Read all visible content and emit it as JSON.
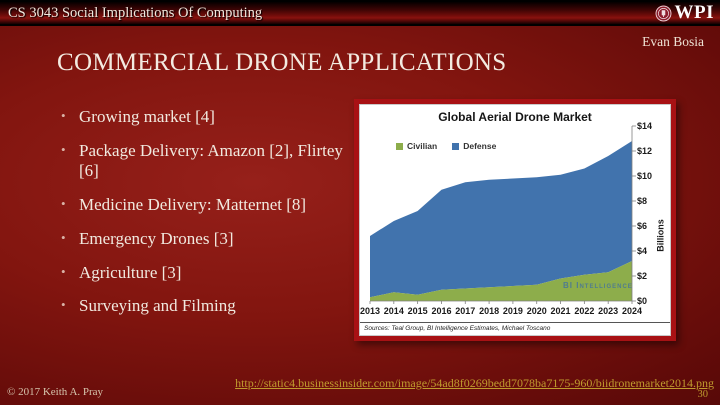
{
  "header": {
    "course_title": "CS 3043 Social Implications Of Computing",
    "logo_text": "WPI"
  },
  "author": "Evan Bosia",
  "slide": {
    "title": "COMMERCIAL DRONE APPLICATIONS",
    "bullets": [
      "Growing market [4]",
      "Package Delivery: Amazon [2], Flirtey [6]",
      "Medicine Delivery: Matternet [8]",
      "Emergency Drones [3]",
      "Agriculture [3]",
      "Surveying and Filming"
    ]
  },
  "chart_data": {
    "type": "area",
    "stacked": true,
    "title": "Global Aerial Drone Market",
    "categories": [
      "2013",
      "2014",
      "2015",
      "2016",
      "2017",
      "2018",
      "2019",
      "2020",
      "2021",
      "2022",
      "2023",
      "2024"
    ],
    "series": [
      {
        "name": "Civilian",
        "color": "#8dad4b",
        "values": [
          0.3,
          0.7,
          0.5,
          0.9,
          1.0,
          1.1,
          1.2,
          1.3,
          1.8,
          2.1,
          2.3,
          3.2
        ]
      },
      {
        "name": "Defense",
        "color": "#4173ad",
        "values": [
          4.9,
          5.7,
          6.7,
          8.0,
          8.5,
          8.6,
          8.6,
          8.6,
          8.3,
          8.5,
          9.3,
          9.6
        ]
      }
    ],
    "ylabel": "Billions",
    "y_ticks": [
      "$0",
      "$2",
      "$4",
      "$6",
      "$8",
      "$10",
      "$12",
      "$14"
    ],
    "ylim": [
      0,
      14
    ],
    "grid": false,
    "legend_position": "top-left-inside",
    "watermark": "BI Intelligence",
    "source_note": "Sources: Teal Group, BI Intelligence Estimates, Michael Toscano"
  },
  "footer": {
    "copyright": "© 2017 Keith A. Pray",
    "link": "http://static4.businessinsider.com/image/54ad8f0269bedd7078ba7175-960/biidronemarket2014.png",
    "page_number": "30"
  }
}
